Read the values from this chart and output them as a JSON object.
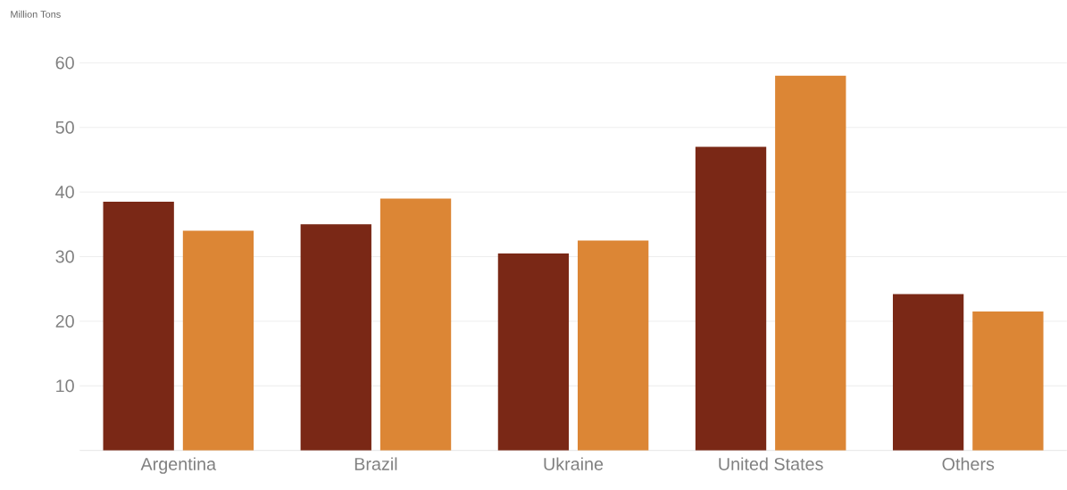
{
  "chart_data": {
    "type": "bar",
    "ylabel": "Million Tons",
    "categories": [
      "Argentina",
      "Brazil",
      "Ukraine",
      "United States",
      "Others"
    ],
    "series": [
      {
        "color": "#7a2816",
        "values": [
          38.5,
          35,
          30.5,
          47,
          24.2
        ]
      },
      {
        "color": "#dc8635",
        "values": [
          34,
          39,
          32.5,
          58,
          21.5
        ]
      }
    ],
    "ylim": [
      0,
      60
    ],
    "yticks": [
      10,
      20,
      30,
      40,
      50,
      60
    ],
    "grid": "y"
  }
}
